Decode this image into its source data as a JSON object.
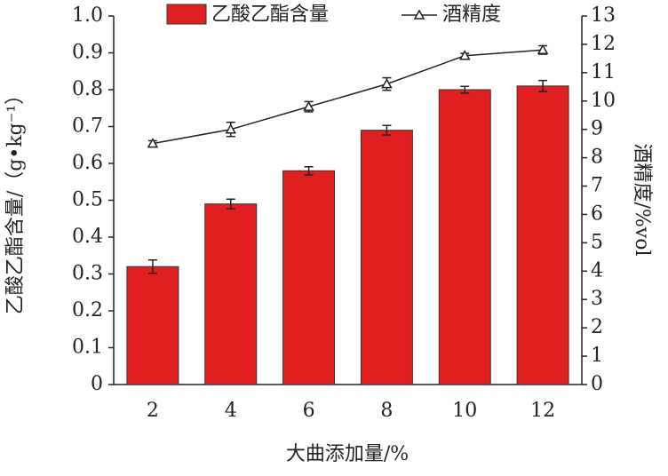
{
  "chart_data": {
    "type": "bar",
    "x_label": "大曲添加量/%",
    "y_label": "乙酸乙酯含量/（g•kg⁻¹）",
    "y2_label": "酒精度/%vol",
    "categories": [
      "2",
      "4",
      "6",
      "8",
      "10",
      "12"
    ],
    "series": [
      {
        "name": "乙酸乙酯含量",
        "type": "bar",
        "color": "#e02020",
        "values": [
          0.32,
          0.49,
          0.58,
          0.69,
          0.8,
          0.81
        ],
        "errors": [
          0.018,
          0.013,
          0.011,
          0.013,
          0.009,
          0.015
        ]
      },
      {
        "name": "酒精度",
        "type": "line",
        "axis": "y2",
        "color": "#222222",
        "values": [
          8.5,
          9.0,
          9.8,
          10.6,
          11.6,
          11.8
        ],
        "errors": [
          0.1,
          0.25,
          0.18,
          0.22,
          0.08,
          0.15
        ]
      }
    ],
    "ylim": [
      0,
      1
    ],
    "yticks": [
      0,
      0.1,
      0.2,
      0.3,
      0.4,
      0.5,
      0.6,
      0.7,
      0.8,
      0.9,
      {
        "value": 1,
        "label": "1.0"
      }
    ],
    "y2lim": [
      0,
      13
    ],
    "y2ticks": [
      0,
      1,
      2,
      3,
      4,
      5,
      6,
      7,
      8,
      9,
      10,
      11,
      12,
      13
    ],
    "legend": "top"
  }
}
